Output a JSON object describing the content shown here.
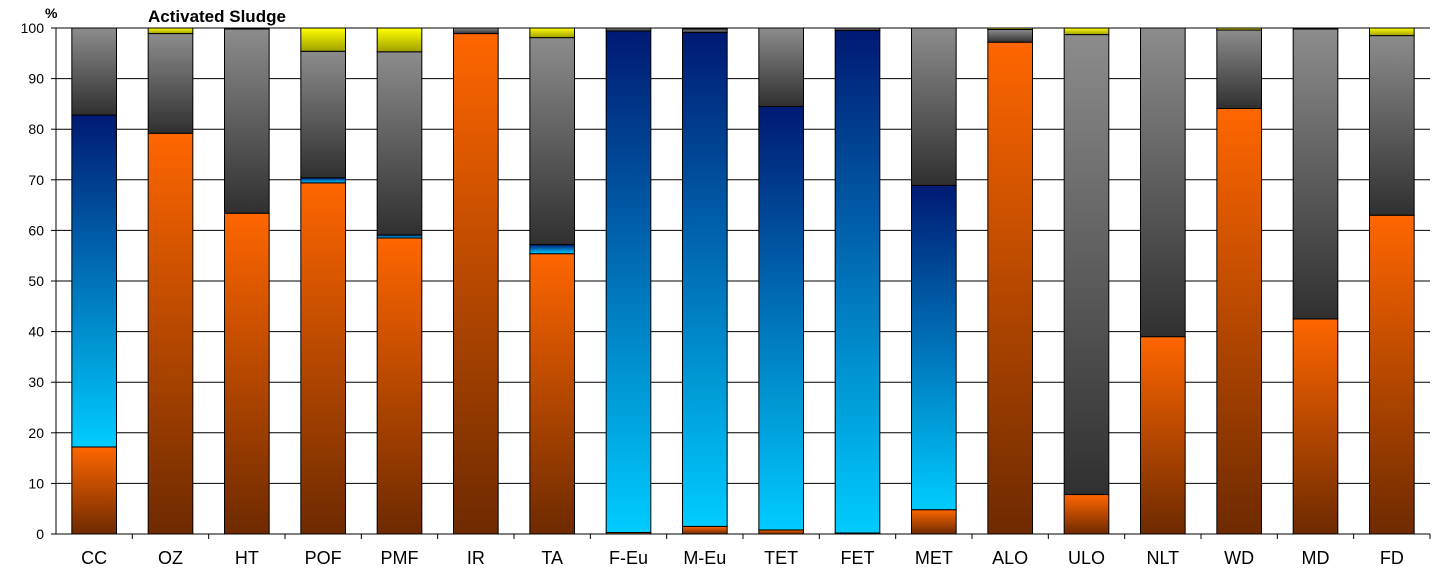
{
  "chart_data": {
    "type": "bar",
    "stacked": true,
    "title": "Activated Sludge",
    "ylabel": "%",
    "xlabel": "",
    "ylim": [
      0,
      100
    ],
    "yticks": [
      0,
      10,
      20,
      30,
      40,
      50,
      60,
      70,
      80,
      90,
      100
    ],
    "grid": "horizontal",
    "legend": "none",
    "categories": [
      "CC",
      "OZ",
      "HT",
      "POF",
      "PMF",
      "IR",
      "TA",
      "F-Eu",
      "M-Eu",
      "TET",
      "FET",
      "MET",
      "ALO",
      "ULO",
      "NLT",
      "WD",
      "MD",
      "FD"
    ],
    "series": [
      {
        "fill": "orange-brown",
        "values": [
          17.2,
          79.2,
          63.4,
          69.4,
          58.5,
          98.9,
          55.4,
          0.3,
          1.5,
          0.8,
          0.2,
          4.8,
          97.2,
          7.8,
          39.0,
          84.1,
          42.5,
          63.0
        ]
      },
      {
        "fill": "cyan-navy",
        "values": [
          65.6,
          0,
          0,
          1.0,
          0.6,
          0,
          1.8,
          99.1,
          97.6,
          83.7,
          99.3,
          64.1,
          0,
          0,
          0,
          0,
          0,
          0
        ]
      },
      {
        "fill": "dark-light-grey",
        "values": [
          17.2,
          19.7,
          36.4,
          25.0,
          36.2,
          1.1,
          40.9,
          0.6,
          0.7,
          15.5,
          0.5,
          31.1,
          2.5,
          90.9,
          61.0,
          15.5,
          57.3,
          35.5
        ]
      },
      {
        "fill": "yellow",
        "values": [
          0,
          1.1,
          0.2,
          4.6,
          4.7,
          0,
          1.9,
          0,
          0.2,
          0,
          0,
          0,
          0.3,
          1.3,
          0,
          0.4,
          0.2,
          1.5
        ]
      }
    ],
    "colors": {
      "orange_top": "#ff6600",
      "orange_bottom": "#6e2a00",
      "blue_top": "#001a73",
      "blue_bottom": "#00ccff",
      "grey_top": "#8c8c8c",
      "grey_bottom": "#303030",
      "yellow_top": "#ffff00",
      "yellow_bottom": "#a0a000",
      "gridline": "#000000"
    }
  }
}
